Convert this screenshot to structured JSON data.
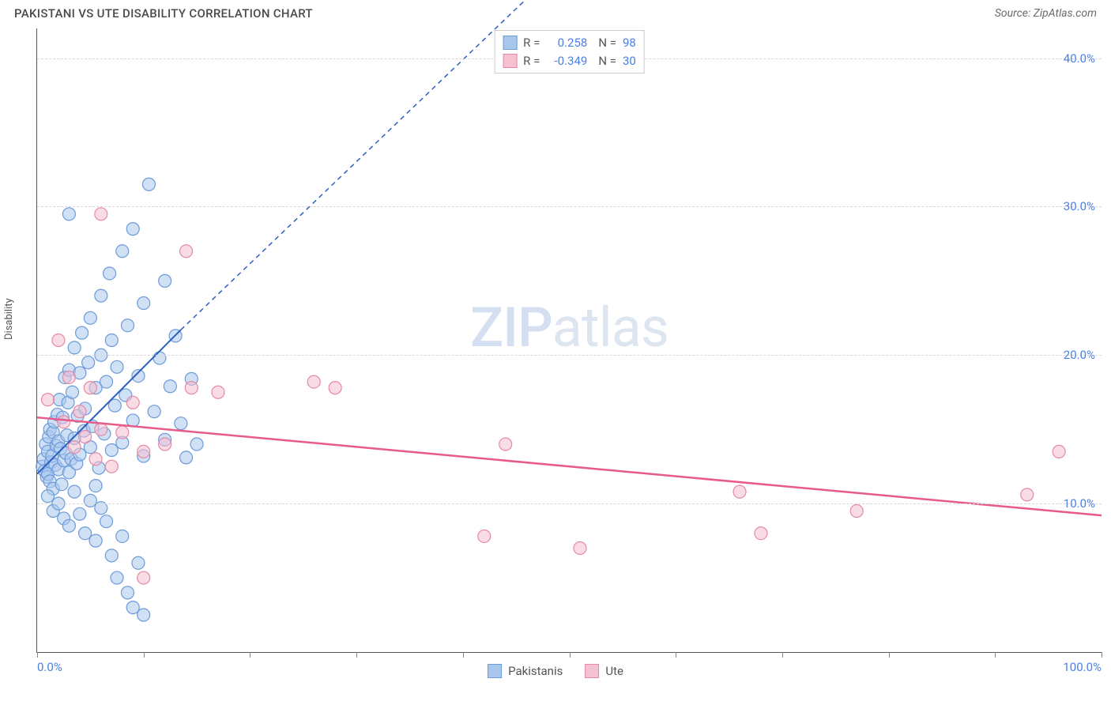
{
  "header": {
    "title": "PAKISTANI VS UTE DISABILITY CORRELATION CHART",
    "source": "Source: ZipAtlas.com"
  },
  "watermark": {
    "part1": "ZIP",
    "part2": "atlas"
  },
  "chart": {
    "type": "scatter",
    "y_axis_label": "Disability",
    "xlim": [
      0,
      100
    ],
    "ylim": [
      0,
      42
    ],
    "x_ticks": [
      0,
      10,
      20,
      30,
      40,
      50,
      60,
      70,
      80,
      90,
      100
    ],
    "x_tick_labels_shown": {
      "0": "0.0%",
      "100": "100.0%"
    },
    "y_ticks": [
      10,
      20,
      30,
      40
    ],
    "y_tick_labels": {
      "10": "10.0%",
      "20": "20.0%",
      "30": "30.0%",
      "40": "40.0%"
    },
    "grid_color": "#d8d8d8",
    "tick_label_color": "#4a80e8",
    "background_color": "#ffffff",
    "marker_radius": 8,
    "marker_opacity": 0.55,
    "series": {
      "pakistanis": {
        "label": "Pakistanis",
        "color_fill": "#a9c7ec",
        "color_stroke": "#6c9bd9",
        "r_value": "0.258",
        "n_value": "98",
        "trend": {
          "x1": 0,
          "y1": 12.0,
          "x2": 13.5,
          "y2": 21.7,
          "x2_dash": 62,
          "y2_dash": 55,
          "color": "#2c5fbf",
          "width": 2
        },
        "points": [
          [
            0.5,
            12.5
          ],
          [
            0.6,
            13.0
          ],
          [
            0.7,
            12.2
          ],
          [
            0.8,
            14.0
          ],
          [
            0.9,
            11.8
          ],
          [
            1.0,
            13.5
          ],
          [
            1.0,
            12.0
          ],
          [
            1.1,
            14.5
          ],
          [
            1.2,
            11.5
          ],
          [
            1.2,
            15.0
          ],
          [
            1.3,
            12.8
          ],
          [
            1.4,
            13.2
          ],
          [
            1.5,
            14.8
          ],
          [
            1.5,
            11.0
          ],
          [
            1.6,
            15.5
          ],
          [
            1.7,
            12.6
          ],
          [
            1.8,
            13.9
          ],
          [
            1.9,
            16.0
          ],
          [
            2.0,
            12.3
          ],
          [
            2.0,
            14.2
          ],
          [
            2.1,
            17.0
          ],
          [
            2.2,
            13.7
          ],
          [
            2.3,
            11.3
          ],
          [
            2.4,
            15.8
          ],
          [
            2.5,
            12.9
          ],
          [
            2.6,
            18.5
          ],
          [
            2.7,
            13.4
          ],
          [
            2.8,
            14.6
          ],
          [
            2.9,
            16.8
          ],
          [
            3.0,
            12.1
          ],
          [
            3.0,
            19.0
          ],
          [
            3.2,
            13.0
          ],
          [
            3.3,
            17.5
          ],
          [
            3.5,
            14.4
          ],
          [
            3.5,
            20.5
          ],
          [
            3.7,
            12.7
          ],
          [
            3.8,
            15.9
          ],
          [
            4.0,
            18.8
          ],
          [
            4.0,
            13.3
          ],
          [
            4.2,
            21.5
          ],
          [
            4.4,
            14.9
          ],
          [
            4.5,
            16.4
          ],
          [
            4.8,
            19.5
          ],
          [
            5.0,
            13.8
          ],
          [
            5.0,
            22.5
          ],
          [
            5.2,
            15.2
          ],
          [
            5.5,
            17.8
          ],
          [
            5.8,
            12.4
          ],
          [
            6.0,
            20.0
          ],
          [
            6.0,
            24.0
          ],
          [
            6.3,
            14.7
          ],
          [
            6.5,
            18.2
          ],
          [
            6.8,
            25.5
          ],
          [
            7.0,
            13.6
          ],
          [
            7.0,
            21.0
          ],
          [
            7.3,
            16.6
          ],
          [
            7.5,
            19.2
          ],
          [
            8.0,
            27.0
          ],
          [
            8.0,
            14.1
          ],
          [
            8.3,
            17.3
          ],
          [
            8.5,
            22.0
          ],
          [
            9.0,
            28.5
          ],
          [
            9.0,
            15.6
          ],
          [
            9.5,
            18.6
          ],
          [
            10.0,
            13.2
          ],
          [
            10.0,
            23.5
          ],
          [
            10.5,
            31.5
          ],
          [
            11.0,
            16.2
          ],
          [
            11.5,
            19.8
          ],
          [
            12.0,
            14.3
          ],
          [
            12.0,
            25.0
          ],
          [
            12.5,
            17.9
          ],
          [
            13.0,
            21.3
          ],
          [
            13.5,
            15.4
          ],
          [
            14.0,
            13.1
          ],
          [
            14.5,
            18.4
          ],
          [
            15.0,
            14.0
          ],
          [
            1.0,
            10.5
          ],
          [
            1.5,
            9.5
          ],
          [
            2.0,
            10.0
          ],
          [
            2.5,
            9.0
          ],
          [
            3.0,
            8.5
          ],
          [
            3.5,
            10.8
          ],
          [
            4.0,
            9.3
          ],
          [
            4.5,
            8.0
          ],
          [
            5.0,
            10.2
          ],
          [
            5.5,
            7.5
          ],
          [
            6.0,
            9.7
          ],
          [
            6.5,
            8.8
          ],
          [
            7.0,
            6.5
          ],
          [
            7.5,
            5.0
          ],
          [
            8.0,
            7.8
          ],
          [
            8.5,
            4.0
          ],
          [
            9.0,
            3.0
          ],
          [
            9.5,
            6.0
          ],
          [
            10.0,
            2.5
          ],
          [
            3.0,
            29.5
          ],
          [
            5.5,
            11.2
          ]
        ]
      },
      "ute": {
        "label": "Ute",
        "color_fill": "#f5c0cf",
        "color_stroke": "#e48aa6",
        "r_value": "-0.349",
        "n_value": "30",
        "trend": {
          "x1": 0,
          "y1": 15.8,
          "x2": 100,
          "y2": 9.2,
          "color": "#e85a8a",
          "width": 2.5
        },
        "points": [
          [
            1.0,
            17.0
          ],
          [
            2.0,
            21.0
          ],
          [
            2.5,
            15.5
          ],
          [
            3.0,
            18.5
          ],
          [
            3.5,
            13.8
          ],
          [
            4.0,
            16.2
          ],
          [
            4.5,
            14.5
          ],
          [
            5.0,
            17.8
          ],
          [
            5.5,
            13.0
          ],
          [
            6.0,
            15.0
          ],
          [
            6.0,
            29.5
          ],
          [
            7.0,
            12.5
          ],
          [
            8.0,
            14.8
          ],
          [
            9.0,
            16.8
          ],
          [
            10.0,
            13.5
          ],
          [
            10.0,
            5.0
          ],
          [
            12.0,
            14.0
          ],
          [
            14.0,
            27.0
          ],
          [
            14.5,
            17.8
          ],
          [
            17.0,
            17.5
          ],
          [
            26.0,
            18.2
          ],
          [
            28.0,
            17.8
          ],
          [
            42.0,
            7.8
          ],
          [
            44.0,
            14.0
          ],
          [
            51.0,
            7.0
          ],
          [
            66.0,
            10.8
          ],
          [
            68.0,
            8.0
          ],
          [
            77.0,
            9.5
          ],
          [
            93.0,
            10.6
          ],
          [
            96.0,
            13.5
          ]
        ]
      }
    }
  },
  "legend_top": {
    "rows": [
      {
        "swatch_fill": "#a9c7ec",
        "swatch_stroke": "#6c9bd9",
        "r_label": "R =",
        "r_value": "0.258",
        "n_label": "N =",
        "n_value": "98",
        "r_color": "#4a80e8",
        "n_color": "#4a80e8"
      },
      {
        "swatch_fill": "#f5c0cf",
        "swatch_stroke": "#e48aa6",
        "r_label": "R =",
        "r_value": "-0.349",
        "n_label": "N =",
        "n_value": "30",
        "r_color": "#4a80e8",
        "n_color": "#4a80e8"
      }
    ]
  }
}
